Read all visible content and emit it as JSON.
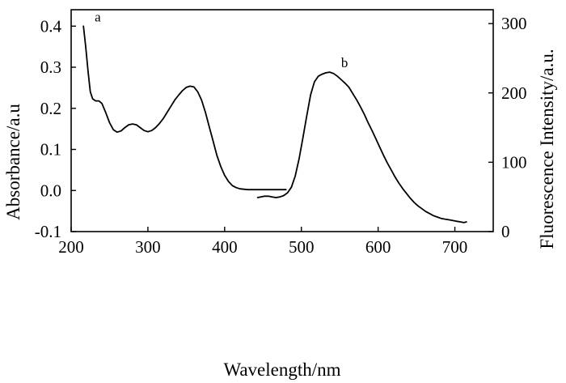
{
  "chart_data": {
    "type": "line",
    "xlabel": "Wavelength/nm",
    "ylabel": "Absorbance/a.u",
    "y2label": "Fluorescence Intensity/a.u.",
    "xlim": [
      200,
      750
    ],
    "ylim": [
      -0.1,
      0.44
    ],
    "y2lim": [
      0,
      320
    ],
    "x_ticks": [
      "200",
      "300",
      "400",
      "500",
      "600",
      "700"
    ],
    "y_ticks": [
      "-0.1",
      "0.0",
      "0.1",
      "0.2",
      "0.3",
      "0.4"
    ],
    "y2_ticks": [
      "0",
      "100",
      "200",
      "300"
    ],
    "grid": false,
    "line_color": "#000000",
    "series": [
      {
        "name": "a",
        "axis": "left",
        "x": [
          216,
          219,
          222,
          225,
          228,
          232,
          236,
          240,
          245,
          250,
          255,
          260,
          265,
          270,
          275,
          280,
          285,
          290,
          295,
          300,
          305,
          310,
          315,
          320,
          325,
          330,
          335,
          340,
          345,
          350,
          355,
          360,
          365,
          370,
          375,
          380,
          385,
          390,
          395,
          400,
          405,
          410,
          415,
          420,
          425,
          430,
          440,
          450,
          460,
          470,
          480
        ],
        "y": [
          0.4,
          0.35,
          0.29,
          0.24,
          0.223,
          0.218,
          0.218,
          0.212,
          0.19,
          0.165,
          0.148,
          0.142,
          0.145,
          0.153,
          0.16,
          0.162,
          0.16,
          0.153,
          0.146,
          0.143,
          0.146,
          0.153,
          0.163,
          0.175,
          0.19,
          0.205,
          0.22,
          0.232,
          0.243,
          0.251,
          0.254,
          0.252,
          0.24,
          0.22,
          0.19,
          0.155,
          0.12,
          0.085,
          0.058,
          0.037,
          0.022,
          0.012,
          0.007,
          0.004,
          0.003,
          0.002,
          0.002,
          0.002,
          0.002,
          0.002,
          0.002
        ]
      },
      {
        "name": "b",
        "axis": "right",
        "x": [
          443,
          447,
          452,
          457,
          462,
          467,
          472,
          477,
          482,
          487,
          492,
          497,
          502,
          507,
          512,
          517,
          522,
          527,
          532,
          537,
          542,
          547,
          552,
          557,
          562,
          567,
          572,
          577,
          582,
          587,
          592,
          597,
          602,
          607,
          612,
          617,
          622,
          627,
          632,
          637,
          642,
          647,
          652,
          657,
          662,
          667,
          672,
          677,
          682,
          687,
          692,
          697,
          702,
          707,
          712,
          715
        ],
        "y": [
          49,
          50,
          51,
          51,
          50,
          49,
          50,
          52,
          56,
          64,
          80,
          105,
          135,
          167,
          197,
          216,
          224,
          227,
          229,
          230,
          228,
          224,
          219,
          214,
          208,
          199,
          190,
          180,
          169,
          157,
          146,
          134,
          122,
          110,
          99,
          89,
          79,
          70,
          62,
          55,
          48,
          42,
          37,
          33,
          29,
          26,
          23,
          21,
          19,
          18,
          17,
          16,
          15,
          14,
          13,
          14
        ]
      }
    ]
  }
}
